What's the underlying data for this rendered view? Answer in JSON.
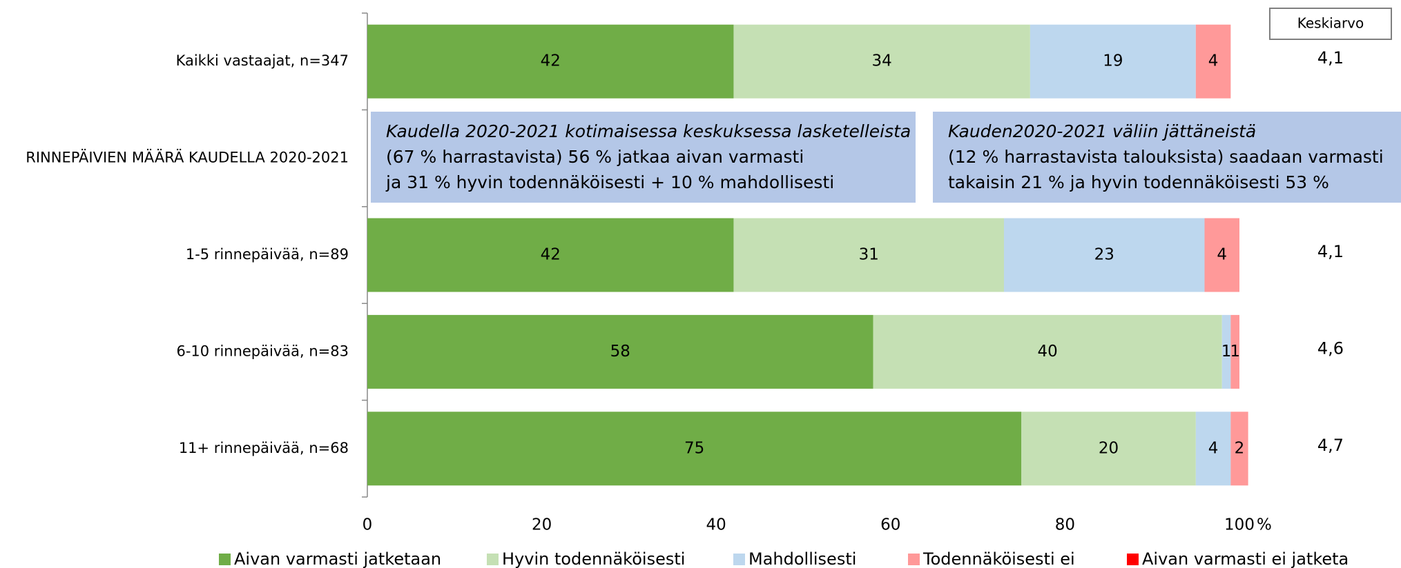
{
  "chart_data": {
    "type": "stacked-barh",
    "categories": [
      "Kaikki vastaajat, n=347",
      "RINNEPÄIVIEN MÄÄRÄ KAUDELLA 2020-2021",
      "1-5 rinnepäivää, n=89",
      "6-10 rinnepäivää, n=83",
      "11+ rinnepäivää, n=68"
    ],
    "series": [
      {
        "name": "Aivan varmasti jatketaan",
        "color": "#70ad47",
        "values": [
          42,
          null,
          42,
          58,
          75
        ]
      },
      {
        "name": "Hyvin todennäköisesti",
        "color": "#c5e0b4",
        "values": [
          34,
          null,
          31,
          40,
          20
        ]
      },
      {
        "name": "Mahdollisesti",
        "color": "#bdd7ee",
        "values": [
          19,
          null,
          23,
          1,
          4
        ]
      },
      {
        "name": "Todennäköisesti ei",
        "color": "#ff9999",
        "values": [
          4,
          null,
          4,
          1,
          2
        ]
      },
      {
        "name": "Aivan varmasti ei jatketa",
        "color": "#ff0000",
        "values": [
          0,
          null,
          0,
          0,
          0
        ]
      }
    ],
    "xlim": [
      0,
      100
    ],
    "xticks": [
      0,
      20,
      40,
      60,
      80,
      100
    ],
    "x_unit": "%",
    "averages": {
      "title": "Keskiarvo",
      "values": [
        4.1,
        null,
        4.1,
        4.6,
        4.7
      ],
      "value_labels": [
        "4,1",
        null,
        "4,1",
        "4,6",
        "4,7"
      ]
    },
    "annotations": [
      {
        "lines": [
          "Kaudella 2020-2021 kotimaisessa keskuksessa lasketelleista",
          "(67 % harrastavista) 56 % jatkaa aivan varmasti",
          "ja 31 % hyvin todennäköisesti + 10 % mahdollisesti"
        ]
      },
      {
        "lines": [
          "Kauden2020-2021 väliin jättäneistä",
          "(12 % harrastavista talouksista) saadaan varmasti",
          "takaisin 21 % ja hyvin todennäköisesti 53 %"
        ]
      }
    ]
  }
}
